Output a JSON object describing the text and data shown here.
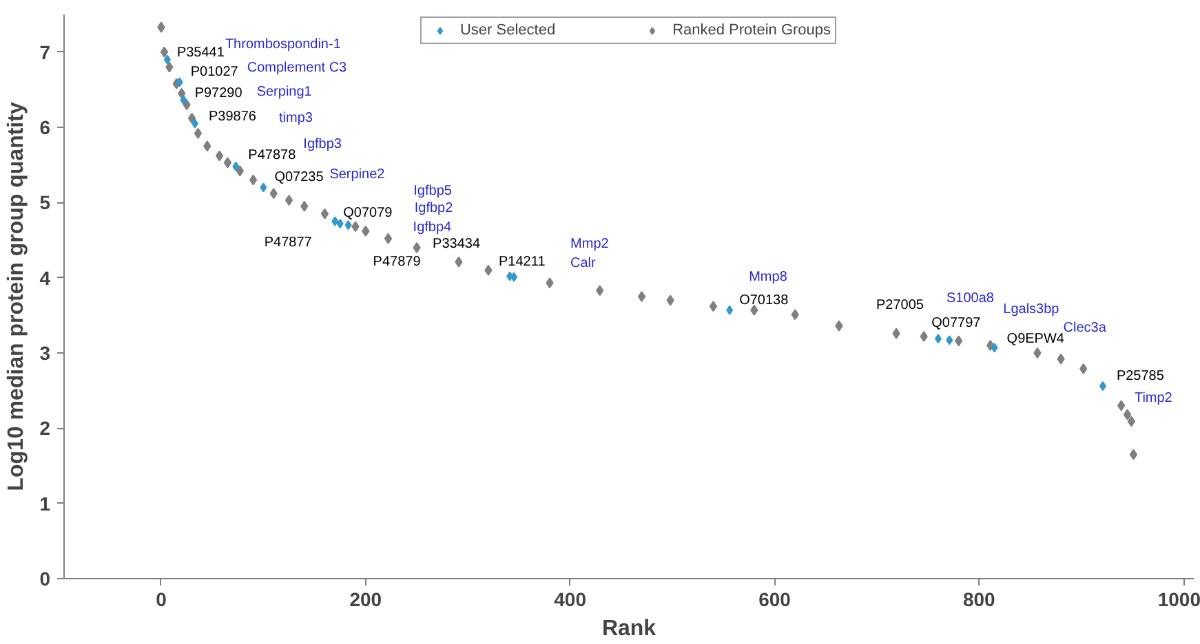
{
  "chart_data": {
    "type": "scatter",
    "xlabel": "Rank",
    "ylabel": "Log10 median protein group quantity",
    "xlim": [
      -95,
      1010
    ],
    "ylim": [
      0,
      7.5
    ],
    "xticks": [
      0,
      200,
      400,
      600,
      800,
      1000
    ],
    "yticks": [
      0,
      1,
      2,
      3,
      4,
      5,
      6,
      7
    ],
    "grid": false,
    "legend": "top",
    "marker": "diamond",
    "series": [
      {
        "name": "Ranked Protein Groups",
        "color": "#808080",
        "x": [
          0,
          3,
          8,
          15,
          20,
          25,
          30,
          36,
          45,
          57,
          65,
          77,
          90,
          110,
          125,
          140,
          160,
          190,
          200,
          222,
          250,
          291,
          320,
          380,
          429,
          470,
          498,
          540,
          580,
          620,
          663,
          719,
          746,
          780,
          811,
          857,
          880,
          902,
          939,
          945,
          949,
          951
        ],
        "values": [
          7.33,
          7.0,
          6.8,
          6.58,
          6.45,
          6.3,
          6.12,
          5.92,
          5.75,
          5.62,
          5.53,
          5.42,
          5.3,
          5.12,
          5.03,
          4.95,
          4.85,
          4.68,
          4.62,
          4.52,
          4.4,
          4.21,
          4.1,
          3.93,
          3.83,
          3.75,
          3.7,
          3.62,
          3.57,
          3.51,
          3.36,
          3.26,
          3.22,
          3.16,
          3.1,
          3.0,
          2.92,
          2.79,
          2.3,
          2.18,
          2.09,
          1.65
        ]
      },
      {
        "name": "User Selected",
        "color": "#3399cc",
        "x": [
          6,
          18,
          22,
          33,
          73,
          100,
          170,
          175,
          183,
          341,
          345,
          556,
          760,
          771,
          815,
          921
        ],
        "values": [
          6.9,
          6.6,
          6.36,
          6.05,
          5.48,
          5.2,
          4.75,
          4.72,
          4.7,
          4.02,
          4.01,
          3.57,
          3.19,
          3.17,
          3.07,
          2.56
        ]
      }
    ],
    "annotations": [
      {
        "text": "P35441",
        "x": 6,
        "y": 6.9
      },
      "Thrombospondin-1",
      {
        "text": "P01027",
        "x": 18,
        "y": 6.6
      },
      "Complement C3",
      {
        "text": "P97290",
        "x": 22,
        "y": 6.36
      },
      "Serping1",
      {
        "text": "P39876",
        "x": 33,
        "y": 6.05
      },
      "timp3",
      {
        "text": "P47878",
        "x": 73,
        "y": 5.48
      },
      "Igfbp3",
      {
        "text": "Q07235",
        "x": 100,
        "y": 5.2
      },
      "Serpine2",
      {
        "text": "Q07079",
        "x": 170,
        "y": 4.75
      },
      "Igfbp5",
      {
        "text": "P47877",
        "x": 175,
        "y": 4.72
      },
      "Igfbp2",
      {
        "text": "P47879",
        "x": 183,
        "y": 4.7
      },
      "Igfbp4",
      {
        "text": "P33434",
        "x": 341,
        "y": 4.02
      },
      "Mmp2",
      {
        "text": "P14211",
        "x": 345,
        "y": 4.01
      },
      "Calr",
      {
        "text": "O70138",
        "x": 556,
        "y": 3.57
      },
      "Mmp8",
      {
        "text": "P27005",
        "x": 760,
        "y": 3.19
      },
      "S100a8",
      {
        "text": "Q07797",
        "x": 771,
        "y": 3.17
      },
      "Lgals3bp",
      {
        "text": "Q9EPW4",
        "x": 815,
        "y": 3.07
      },
      "Clec3a",
      {
        "text": "P25785",
        "x": 921,
        "y": 2.56
      },
      "Timp2"
    ]
  }
}
